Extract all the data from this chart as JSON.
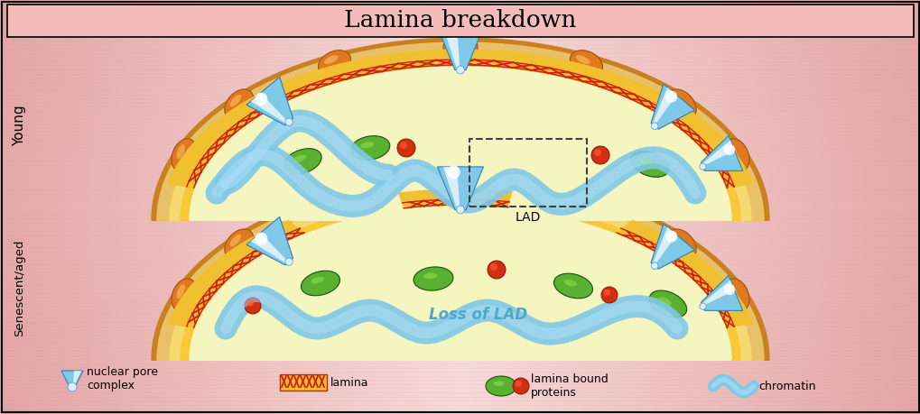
{
  "title": "Lamina breakdown",
  "label_young": "Young",
  "label_senescent": "Senescent/aged",
  "bg_gradient_top": "#f2c8c8",
  "bg_gradient_center": "#f8e0e0",
  "bg_gradient_left": "#f5b8b8",
  "outer_membrane_color": "#e8c070",
  "outer_membrane_dark": "#c89030",
  "mid_ring_color": "#f5d878",
  "inner_lamina_band": "#f0c840",
  "nucleus_interior": "#f8f8c8",
  "lamina_red": "#cc2010",
  "lamina_yellow": "#f0c030",
  "chromatin_color": "#80c8e8",
  "chromatin_light": "#b0dff8",
  "green_color": "#5ab030",
  "green_light": "#80d040",
  "red_dot_color": "#d03010",
  "orange_oval": "#e08020",
  "orange_oval_light": "#f8b040",
  "pore_blue": "#80c8e8",
  "pore_blue_light": "#c0e8f8",
  "pore_white": "#f0f8ff",
  "title_bg": "#f5c0c0",
  "loss_lad_color": "#50a8c8"
}
